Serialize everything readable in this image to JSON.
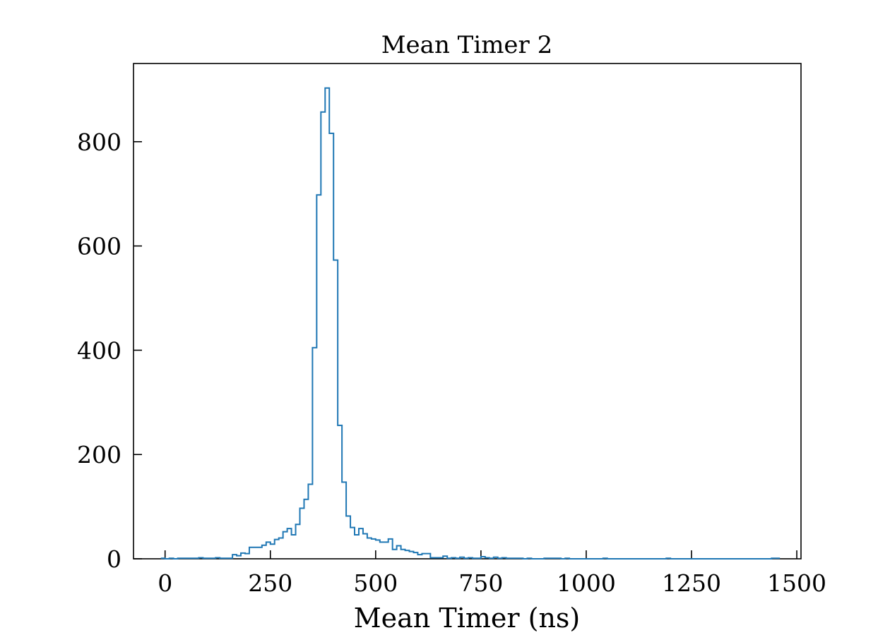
{
  "chart_data": {
    "type": "histogram",
    "title": "Mean Timer 2",
    "xlabel": "Mean Timer (ns)",
    "ylabel": "",
    "xlim": [
      -75,
      1510
    ],
    "ylim": [
      0,
      950
    ],
    "xticks": [
      0,
      250,
      500,
      750,
      1000,
      1250,
      1500
    ],
    "yticks": [
      0,
      200,
      400,
      600,
      800
    ],
    "xtick_labels": [
      "0",
      "250",
      "500",
      "750",
      "1000",
      "1250",
      "1500"
    ],
    "ytick_labels": [
      "0",
      "200",
      "400",
      "600",
      "800"
    ],
    "grid": false,
    "line_color": "#1f77b4",
    "bin_width": 10,
    "bin_start": -10,
    "counts": [
      1,
      0,
      1,
      0,
      1,
      1,
      1,
      1,
      1,
      2,
      1,
      1,
      1,
      2,
      1,
      1,
      1,
      8,
      6,
      11,
      10,
      22,
      22,
      22,
      26,
      32,
      28,
      37,
      40,
      52,
      58,
      46,
      66,
      97,
      114,
      143,
      405,
      698,
      857,
      903,
      816,
      573,
      256,
      147,
      82,
      60,
      46,
      58,
      48,
      40,
      38,
      36,
      32,
      32,
      38,
      18,
      25,
      18,
      16,
      14,
      12,
      8,
      10,
      10,
      2,
      2,
      2,
      5,
      1,
      2,
      1,
      3,
      1,
      2,
      1,
      1,
      4,
      2,
      1,
      3,
      1,
      2,
      1,
      1,
      1,
      1,
      0,
      1,
      0,
      0,
      0,
      1,
      1,
      1,
      1,
      0,
      1,
      0,
      0,
      0,
      0,
      0,
      0,
      0,
      0,
      1,
      0,
      0,
      0,
      0,
      0,
      0,
      0,
      0,
      0,
      0,
      0,
      0,
      0,
      0,
      1,
      0,
      0,
      0,
      0,
      0,
      0,
      0,
      0,
      0,
      0,
      0,
      0,
      0,
      0,
      0,
      0,
      0,
      0,
      0,
      0,
      0,
      0,
      0,
      0,
      1,
      1
    ]
  }
}
